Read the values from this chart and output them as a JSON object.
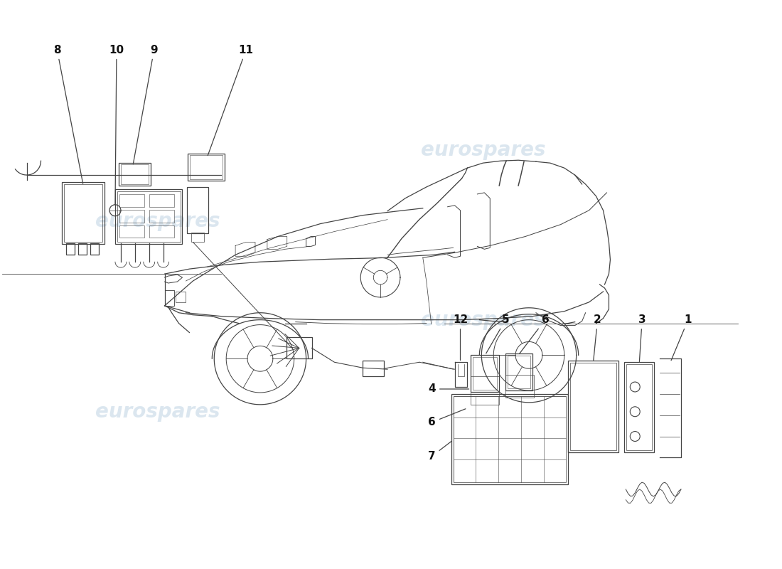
{
  "bg": "#ffffff",
  "lc": "#444444",
  "tc": "#111111",
  "wm_text": "eurospares",
  "wm_color": "#b8cfe0",
  "wm_alpha": 0.5,
  "wm_fs": 20,
  "lbl_fs": 11,
  "lw": 0.9
}
